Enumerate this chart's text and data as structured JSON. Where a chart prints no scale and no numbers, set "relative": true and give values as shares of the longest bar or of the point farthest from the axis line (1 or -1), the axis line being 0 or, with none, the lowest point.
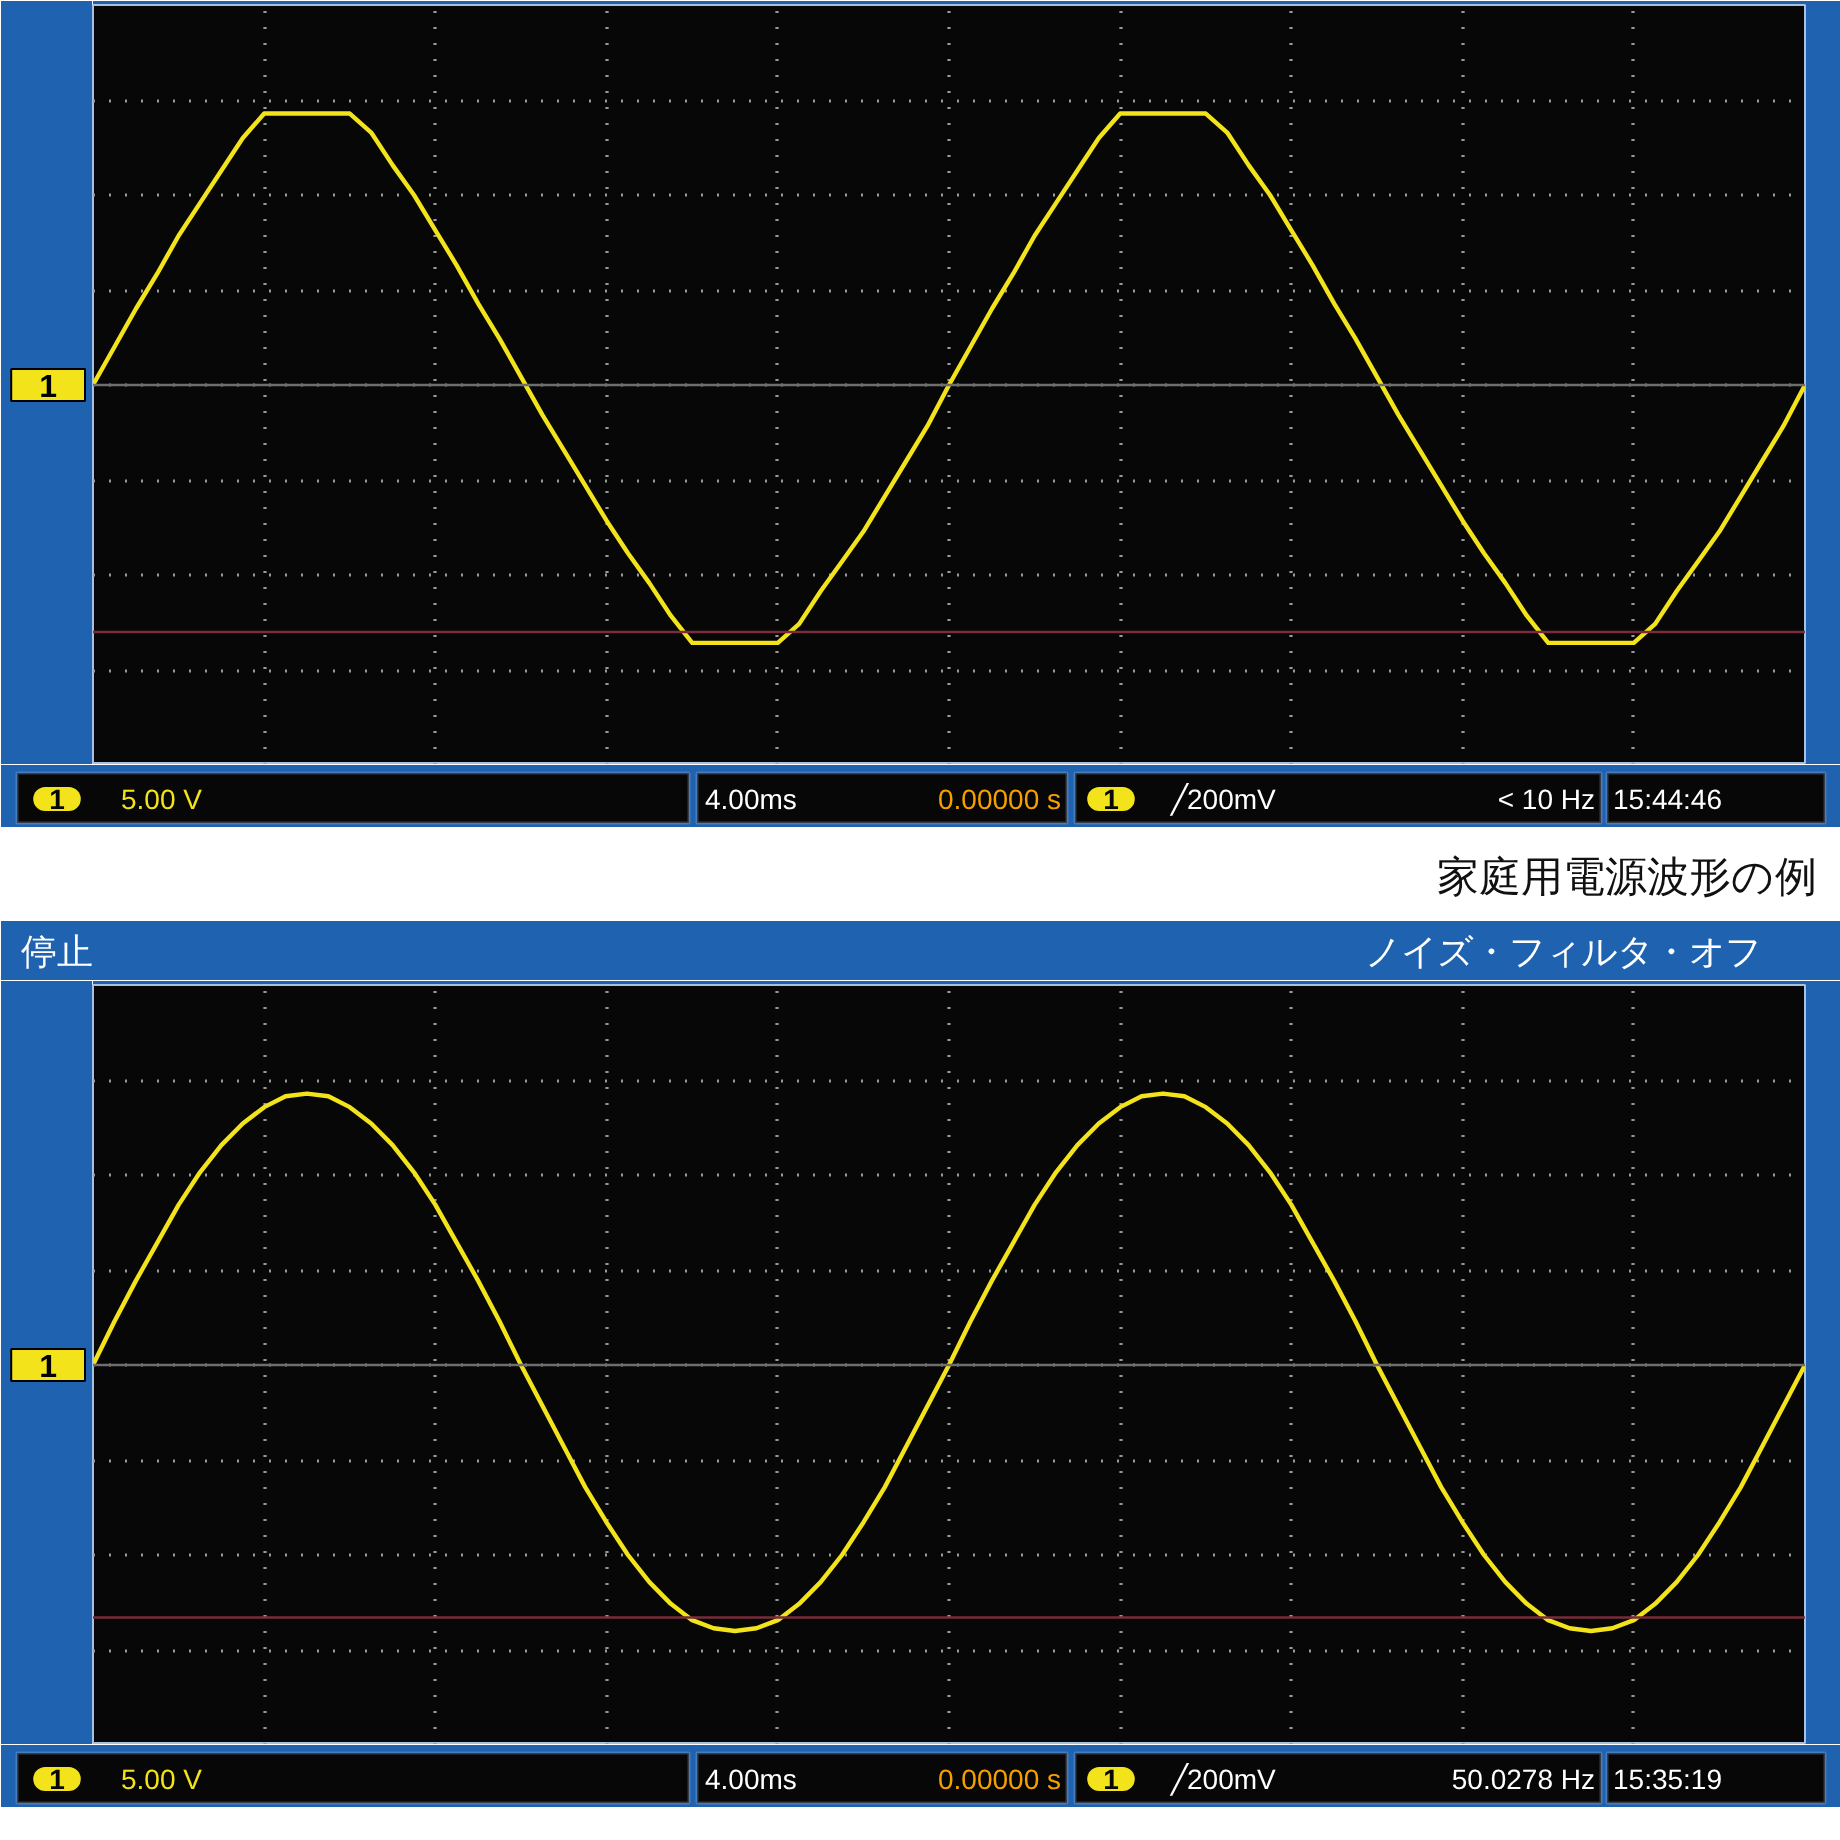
{
  "chart_data": [
    {
      "type": "line",
      "relative": true,
      "grid": true,
      "categories": [
        null,
        null,
        null,
        null,
        null,
        null,
        null,
        null,
        null,
        null,
        null,
        null,
        null,
        null,
        null,
        null,
        null,
        null,
        null,
        null,
        null,
        null,
        null,
        null,
        null,
        null,
        null,
        null,
        null,
        null,
        null,
        null,
        null,
        null,
        null,
        null,
        null,
        null,
        null,
        null,
        null,
        null,
        null,
        null,
        null,
        null,
        null,
        null,
        null,
        null,
        null,
        null,
        null,
        null,
        null,
        null,
        null,
        null,
        null,
        null,
        null,
        null,
        null,
        null,
        null,
        null,
        null,
        null,
        null,
        null,
        null,
        null,
        null,
        null,
        null,
        null,
        null,
        null,
        null,
        null,
        null
      ],
      "series": [
        {
          "color": "#f2e31b",
          "values": [
            0,
            0.14,
            0.28,
            0.41,
            0.55,
            0.67,
            0.79,
            0.91,
            1.0,
            1.0,
            1.0,
            1.0,
            1.0,
            0.93,
            0.81,
            0.7,
            0.57,
            0.44,
            0.3,
            0.17,
            0.03,
            -0.11,
            -0.24,
            -0.37,
            -0.5,
            -0.62,
            -0.73,
            -0.85,
            -0.95,
            -0.95,
            -0.95,
            -0.95,
            -0.95,
            -0.88,
            -0.76,
            -0.65,
            -0.54,
            -0.41,
            -0.28,
            -0.15,
            0.0,
            0.14,
            0.28,
            0.41,
            0.55,
            0.67,
            0.79,
            0.91,
            1.0,
            1.0,
            1.0,
            1.0,
            1.0,
            0.93,
            0.81,
            0.7,
            0.57,
            0.44,
            0.3,
            0.17,
            0.03,
            -0.11,
            -0.24,
            -0.37,
            -0.5,
            -0.62,
            -0.73,
            -0.85,
            -0.95,
            -0.95,
            -0.95,
            -0.95,
            -0.95,
            -0.88,
            -0.76,
            -0.65,
            -0.54,
            -0.41,
            -0.28,
            -0.15,
            0.0
          ]
        }
      ],
      "ref_lines": [
        {
          "axis": "y",
          "value": 0,
          "color": "#6e6e6e"
        },
        {
          "axis": "y",
          "value": -0.91,
          "color": "#7a2c3a"
        }
      ],
      "annotations": [
        "1",
        "1",
        "5.00 V",
        "4.00ms",
        "0.00000 s",
        "1",
        "╱200mV",
        "< 10 Hz",
        "15:44:46",
        "家庭用電源波形の例"
      ]
    },
    {
      "type": "line",
      "relative": true,
      "grid": true,
      "title": "停止",
      "subtitle": "ノイズ・フィルタ・オフ",
      "categories": [
        null,
        null,
        null,
        null,
        null,
        null,
        null,
        null,
        null,
        null,
        null,
        null,
        null,
        null,
        null,
        null,
        null,
        null,
        null,
        null,
        null,
        null,
        null,
        null,
        null,
        null,
        null,
        null,
        null,
        null,
        null,
        null,
        null,
        null,
        null,
        null,
        null,
        null,
        null,
        null,
        null,
        null,
        null,
        null,
        null,
        null,
        null,
        null,
        null,
        null,
        null,
        null,
        null,
        null,
        null,
        null,
        null,
        null,
        null,
        null,
        null,
        null,
        null,
        null,
        null,
        null,
        null,
        null,
        null,
        null,
        null,
        null,
        null,
        null,
        null,
        null,
        null,
        null,
        null,
        null,
        null
      ],
      "series": [
        {
          "color": "#f2e31b",
          "values": [
            0,
            0.16,
            0.31,
            0.45,
            0.59,
            0.71,
            0.81,
            0.89,
            0.95,
            0.99,
            1.0,
            0.99,
            0.95,
            0.89,
            0.81,
            0.71,
            0.59,
            0.45,
            0.31,
            0.16,
            0.0,
            -0.15,
            -0.3,
            -0.45,
            -0.58,
            -0.7,
            -0.8,
            -0.88,
            -0.94,
            -0.97,
            -0.98,
            -0.97,
            -0.94,
            -0.88,
            -0.8,
            -0.7,
            -0.58,
            -0.45,
            -0.3,
            -0.15,
            0.0,
            0.16,
            0.31,
            0.45,
            0.59,
            0.71,
            0.81,
            0.89,
            0.95,
            0.99,
            1.0,
            0.99,
            0.95,
            0.89,
            0.81,
            0.71,
            0.59,
            0.45,
            0.31,
            0.16,
            0.0,
            -0.15,
            -0.3,
            -0.45,
            -0.58,
            -0.7,
            -0.8,
            -0.88,
            -0.94,
            -0.97,
            -0.98,
            -0.97,
            -0.94,
            -0.88,
            -0.8,
            -0.7,
            -0.58,
            -0.45,
            -0.3,
            -0.15,
            0.0
          ]
        }
      ],
      "ref_lines": [
        {
          "axis": "y",
          "value": 0,
          "color": "#6e6e6e"
        },
        {
          "axis": "y",
          "value": -0.93,
          "color": "#7a2c3a"
        }
      ],
      "annotations": [
        "1",
        "1",
        "5.00 V",
        "4.00ms",
        "0.00000 s",
        "1",
        "╱200mV",
        "50.0278 Hz",
        "15:35:19"
      ]
    }
  ]
}
